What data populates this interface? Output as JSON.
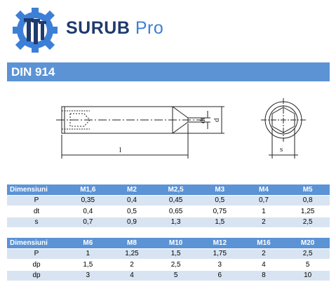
{
  "logo": {
    "name": "SURUB",
    "suffix": "Pro"
  },
  "banner": {
    "title": "DIN 914"
  },
  "drawing": {
    "length_label": "l",
    "hex_label": "s",
    "diameter_label": "d",
    "tip_label": "dt"
  },
  "tables": [
    {
      "header": [
        "Dimensiuni",
        "M1,6",
        "M2",
        "M2,5",
        "M3",
        "M4",
        "M5"
      ],
      "rows": [
        [
          "P",
          "0,35",
          "0,4",
          "0,45",
          "0,5",
          "0,7",
          "0,8"
        ],
        [
          "dt",
          "0,4",
          "0,5",
          "0,65",
          "0,75",
          "1",
          "1,25"
        ],
        [
          "s",
          "0,7",
          "0,9",
          "1,3",
          "1,5",
          "2",
          "2,5"
        ]
      ]
    },
    {
      "header": [
        "Dimensiuni",
        "M6",
        "M8",
        "M10",
        "M12",
        "M16",
        "M20"
      ],
      "rows": [
        [
          "P",
          "1",
          "1,25",
          "1,5",
          "1,75",
          "2",
          "2,5"
        ],
        [
          "dp",
          "1,5",
          "2",
          "2,5",
          "3",
          "4",
          "5"
        ],
        [
          "dp",
          "3",
          "4",
          "5",
          "6",
          "8",
          "10"
        ]
      ]
    }
  ]
}
